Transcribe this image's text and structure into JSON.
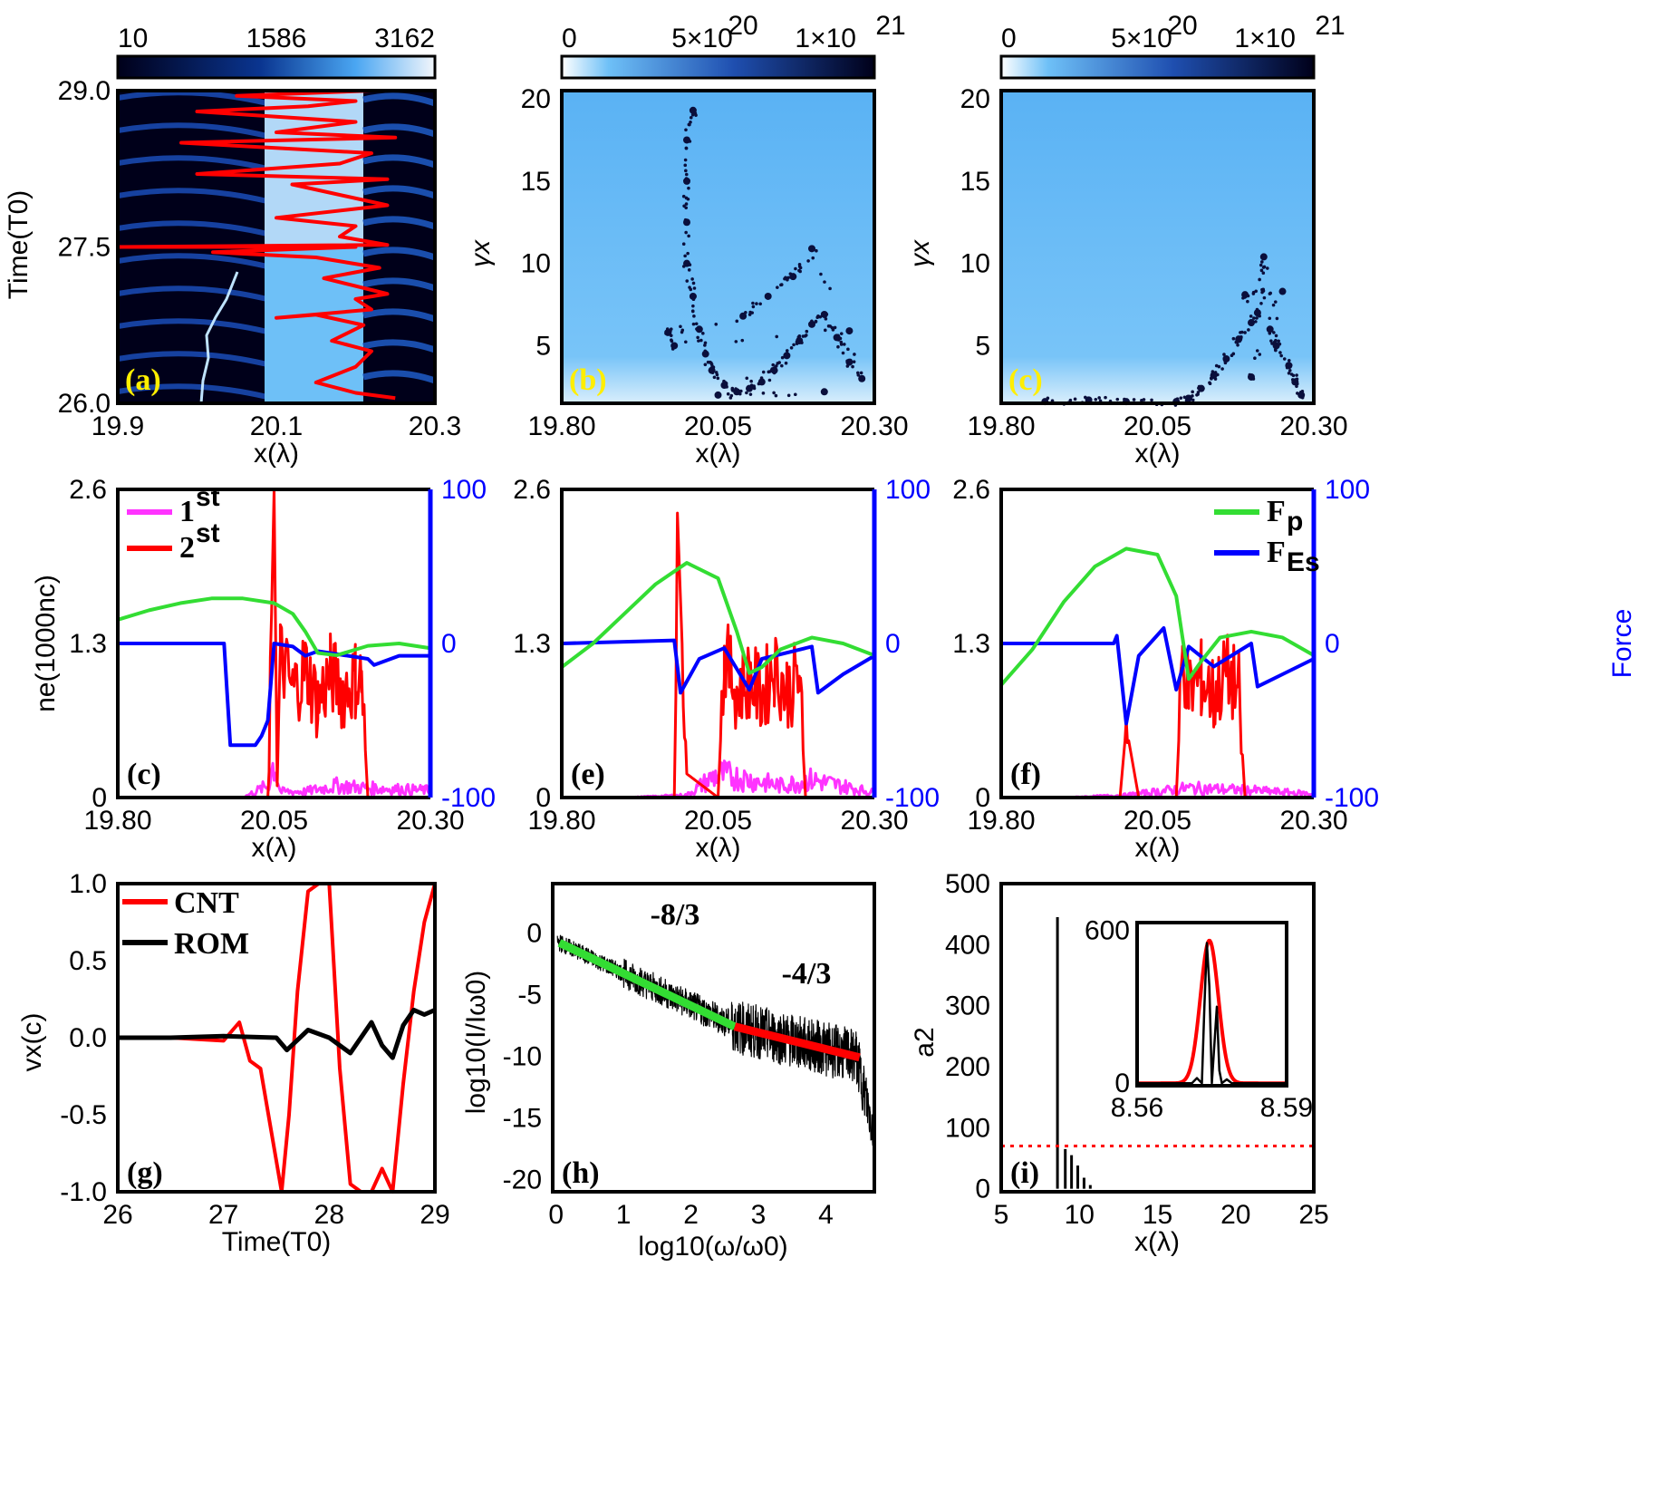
{
  "colors": {
    "red": "#ff0000",
    "green": "#33dd33",
    "blue": "#0000ff",
    "magenta": "#ff33ff",
    "black": "#000000",
    "yellow_label": "#ffee00",
    "map_dark": "#00001a",
    "map_mid": "#1f68c8",
    "map_light": "#6ec0f7",
    "map_white": "#f2f6fb"
  },
  "chart_data": [
    {
      "id": "a",
      "type": "heatmap",
      "panel_label": "(a)",
      "colorbar_ticks": [
        "10",
        "1586",
        "3162"
      ],
      "xlabel": "x(λ)",
      "ylabel": "Time(T0)",
      "xticks": [
        "19.9",
        "20.1",
        "20.3"
      ],
      "yticks": [
        "26.0",
        "27.5",
        "29.0"
      ],
      "xlim": [
        19.9,
        20.3
      ],
      "ylim": [
        26.0,
        29.0
      ],
      "overlay": {
        "name": "red trajectory",
        "color": "#ff0000"
      }
    },
    {
      "id": "b",
      "type": "scatter",
      "panel_label": "(b)",
      "colorbar_ticks": [
        "0",
        "5×10",
        "20",
        "1×10",
        "21"
      ],
      "xlabel": "x(λ)",
      "ylabel": "γx",
      "xticks": [
        "19.80",
        "20.05",
        "20.30"
      ],
      "yticks": [
        "5",
        "10",
        "15",
        "20"
      ],
      "xlim": [
        19.8,
        20.3
      ],
      "ylim": [
        1.5,
        20.5
      ],
      "points": [
        [
          20.01,
          19.3
        ],
        [
          20.0,
          17.5
        ],
        [
          20.0,
          15.0
        ],
        [
          20.0,
          12.5
        ],
        [
          20.0,
          10.0
        ],
        [
          20.01,
          8.0
        ],
        [
          20.02,
          6.0
        ],
        [
          20.03,
          4.5
        ],
        [
          20.04,
          3.5
        ],
        [
          20.06,
          2.6
        ],
        [
          20.08,
          2.2
        ],
        [
          20.1,
          2.4
        ],
        [
          20.12,
          2.8
        ],
        [
          20.14,
          3.5
        ],
        [
          20.16,
          4.4
        ],
        [
          20.18,
          5.3
        ],
        [
          20.2,
          6.3
        ],
        [
          20.22,
          6.9
        ],
        [
          20.24,
          5.5
        ],
        [
          20.26,
          4.0
        ],
        [
          20.28,
          3.0
        ],
        [
          20.2,
          10.9
        ],
        [
          20.17,
          9.2
        ],
        [
          20.13,
          8.0
        ],
        [
          20.09,
          6.8
        ],
        [
          19.97,
          5.8
        ],
        [
          19.98,
          5.0
        ],
        [
          20.26,
          5.9
        ],
        [
          20.05,
          2.0
        ],
        [
          20.22,
          2.2
        ]
      ]
    },
    {
      "id": "c_top",
      "type": "scatter",
      "panel_label": "(c)",
      "colorbar_ticks": [
        "0",
        "5×10",
        "20",
        "1×10",
        "21"
      ],
      "xlabel": "x(λ)",
      "ylabel": "γx",
      "xticks": [
        "19.80",
        "20.05",
        "20.30"
      ],
      "yticks": [
        "5",
        "10",
        "15",
        "20"
      ],
      "xlim": [
        19.8,
        20.3
      ],
      "ylim": [
        1.5,
        20.5
      ],
      "points": [
        [
          19.87,
          1.6
        ],
        [
          19.94,
          1.7
        ],
        [
          20.0,
          1.6
        ],
        [
          20.08,
          1.6
        ],
        [
          20.1,
          1.8
        ],
        [
          20.12,
          2.4
        ],
        [
          20.14,
          3.2
        ],
        [
          20.16,
          4.2
        ],
        [
          20.18,
          5.4
        ],
        [
          20.2,
          6.4
        ],
        [
          20.21,
          7.0
        ],
        [
          20.22,
          10.4
        ],
        [
          20.23,
          6.0
        ],
        [
          20.24,
          5.0
        ],
        [
          20.26,
          3.8
        ],
        [
          20.27,
          2.8
        ],
        [
          20.28,
          2.0
        ],
        [
          20.19,
          8.1
        ],
        [
          20.25,
          8.3
        ],
        [
          20.2,
          3.1
        ]
      ]
    },
    {
      "id": "d",
      "type": "line",
      "panel_label": "(c)",
      "xlabel": "x(λ)",
      "ylabel": "ne(1000nc)",
      "ylabel_right": "Force",
      "xticks": [
        "19.80",
        "20.05",
        "20.30"
      ],
      "yticks": [
        "0",
        "1.3",
        "2.6"
      ],
      "yticks_right": [
        "-100",
        "0",
        "100"
      ],
      "xlim": [
        19.8,
        20.3
      ],
      "ylim": [
        0,
        2.6
      ],
      "ylim_right": [
        -100,
        100
      ],
      "legend": [
        {
          "text": "1",
          "sup": "st",
          "color": "#ff33ff"
        },
        {
          "text": "2",
          "sup": "st",
          "color": "#ff0000"
        }
      ],
      "series": [
        {
          "color": "#33dd33",
          "x": [
            19.8,
            19.85,
            19.9,
            19.95,
            20.0,
            20.05,
            20.08,
            20.1,
            20.12,
            20.15,
            20.2,
            20.25,
            20.3
          ],
          "y": [
            1.5,
            1.58,
            1.64,
            1.68,
            1.68,
            1.64,
            1.55,
            1.4,
            1.22,
            1.2,
            1.28,
            1.3,
            1.26
          ]
        },
        {
          "color": "#0000ff",
          "axis": "right",
          "x": [
            19.8,
            19.97,
            19.98,
            20.02,
            20.03,
            20.04,
            20.05,
            20.08,
            20.1,
            20.12,
            20.2,
            20.21,
            20.25,
            20.3
          ],
          "y": [
            0,
            0,
            -66,
            -66,
            -60,
            -50,
            0,
            -2,
            -8,
            -5,
            -10,
            -14,
            -8,
            -8
          ]
        },
        {
          "color": "#ff0000",
          "x": [
            19.8,
            20.04,
            20.05,
            20.055,
            20.06,
            20.08,
            20.1,
            20.12,
            20.14,
            20.16,
            20.18,
            20.19,
            20.2,
            20.3
          ],
          "y": [
            0,
            0,
            2.6,
            0.1,
            1.2,
            0.9,
            1.1,
            0.8,
            1.05,
            0.9,
            1.0,
            1.0,
            0,
            0
          ]
        },
        {
          "color": "#ff33ff",
          "x": [
            19.8,
            20.0,
            20.04,
            20.05,
            20.06,
            20.1,
            20.15,
            20.2,
            20.3
          ],
          "y": [
            0,
            0,
            0.1,
            0.3,
            0.05,
            0.05,
            0.1,
            0.08,
            0.06
          ]
        }
      ]
    },
    {
      "id": "e",
      "type": "line",
      "panel_label": "(e)",
      "xlabel": "x(λ)",
      "xticks": [
        "19.80",
        "20.05",
        "20.30"
      ],
      "yticks": [
        "0",
        "1.3",
        "2.6"
      ],
      "yticks_right": [
        "-100",
        "0",
        "100"
      ],
      "xlim": [
        19.8,
        20.3
      ],
      "ylim": [
        0,
        2.6
      ],
      "ylim_right": [
        -100,
        100
      ],
      "series": [
        {
          "color": "#33dd33",
          "x": [
            19.8,
            19.85,
            19.9,
            19.95,
            20.0,
            20.05,
            20.08,
            20.1,
            20.12,
            20.15,
            20.2,
            20.25,
            20.3
          ],
          "y": [
            1.1,
            1.3,
            1.55,
            1.8,
            1.98,
            1.85,
            1.4,
            1.05,
            1.1,
            1.25,
            1.35,
            1.3,
            1.2
          ]
        },
        {
          "color": "#0000ff",
          "axis": "right",
          "x": [
            19.8,
            19.98,
            19.99,
            20.02,
            20.06,
            20.1,
            20.12,
            20.2,
            20.21,
            20.25,
            20.3
          ],
          "y": [
            0,
            2,
            -32,
            -10,
            -3,
            -30,
            -10,
            -2,
            -32,
            -20,
            -8
          ]
        },
        {
          "color": "#ff0000",
          "x": [
            19.8,
            19.98,
            19.985,
            20.0,
            20.05,
            20.06,
            20.08,
            20.1,
            20.12,
            20.14,
            20.16,
            20.18,
            20.19,
            20.3
          ],
          "y": [
            0,
            0,
            2.4,
            0.2,
            0,
            1.2,
            0.9,
            1.0,
            0.85,
            1.1,
            0.9,
            1.0,
            0,
            0
          ]
        },
        {
          "color": "#ff33ff",
          "x": [
            19.8,
            19.9,
            20.0,
            20.05,
            20.1,
            20.15,
            20.2,
            20.3
          ],
          "y": [
            0,
            0,
            0.02,
            0.2,
            0.15,
            0.1,
            0.15,
            0.04
          ]
        }
      ]
    },
    {
      "id": "f",
      "type": "line",
      "panel_label": "(f)",
      "xlabel": "x(λ)",
      "ylabel_right": "Force",
      "xticks": [
        "19.80",
        "20.05",
        "20.30"
      ],
      "yticks": [
        "0",
        "1.3",
        "2.6"
      ],
      "yticks_right": [
        "-100",
        "0",
        "100"
      ],
      "xlim": [
        19.8,
        20.3
      ],
      "ylim": [
        0,
        2.6
      ],
      "ylim_right": [
        -100,
        100
      ],
      "legend": [
        {
          "text": "F",
          "sub": "p",
          "color": "#33dd33"
        },
        {
          "text": "F",
          "sub": "Es",
          "color": "#0000ff"
        }
      ],
      "series": [
        {
          "color": "#33dd33",
          "x": [
            19.8,
            19.85,
            19.9,
            19.95,
            20.0,
            20.05,
            20.08,
            20.1,
            20.12,
            20.15,
            20.2,
            20.25,
            20.3
          ],
          "y": [
            0.95,
            1.25,
            1.65,
            1.95,
            2.1,
            2.05,
            1.7,
            1.0,
            1.15,
            1.35,
            1.4,
            1.35,
            1.2
          ]
        },
        {
          "color": "#0000ff",
          "axis": "right",
          "x": [
            19.8,
            19.98,
            19.985,
            20.0,
            20.02,
            20.06,
            20.08,
            20.1,
            20.14,
            20.2,
            20.21,
            20.25,
            20.3
          ],
          "y": [
            0,
            0,
            5,
            -52,
            -8,
            10,
            -30,
            -2,
            -15,
            0,
            -28,
            -20,
            -10
          ]
        },
        {
          "color": "#ff0000",
          "x": [
            19.8,
            19.99,
            20.0,
            20.02,
            20.08,
            20.09,
            20.1,
            20.12,
            20.14,
            20.16,
            20.18,
            20.19,
            20.3
          ],
          "y": [
            0,
            0,
            0.6,
            0,
            0,
            1.2,
            0.9,
            1.0,
            0.85,
            1.05,
            0.9,
            0,
            0
          ]
        },
        {
          "color": "#ff33ff",
          "x": [
            19.8,
            19.9,
            20.0,
            20.1,
            20.2,
            20.3
          ],
          "y": [
            0,
            0,
            0.02,
            0.08,
            0.06,
            0.03
          ]
        }
      ]
    },
    {
      "id": "g",
      "type": "line",
      "panel_label": "(g)",
      "xlabel": "Time(T0)",
      "ylabel": "vx(c)",
      "xticks": [
        "26",
        "27",
        "28",
        "29"
      ],
      "yticks": [
        "-1.0",
        "-0.5",
        "0.0",
        "0.5",
        "1.0"
      ],
      "xlim": [
        26,
        29
      ],
      "ylim": [
        -1.0,
        1.0
      ],
      "legend": [
        {
          "text": "CNT",
          "color": "#ff0000"
        },
        {
          "text": "ROM",
          "color": "#000000"
        }
      ],
      "series": [
        {
          "name": "CNT",
          "color": "#ff0000",
          "x": [
            26,
            26.5,
            27,
            27.15,
            27.25,
            27.35,
            27.45,
            27.55,
            27.62,
            27.7,
            27.8,
            27.9,
            28.0,
            28.1,
            28.2,
            28.3,
            28.4,
            28.5,
            28.6,
            28.7,
            28.8,
            28.9,
            29
          ],
          "y": [
            0,
            0,
            -0.02,
            0.1,
            -0.15,
            -0.2,
            -0.6,
            -1.0,
            -0.5,
            0.3,
            0.95,
            1.0,
            1.0,
            -0.2,
            -0.95,
            -1.0,
            -1.0,
            -0.85,
            -1.0,
            -0.3,
            0.3,
            0.75,
            1.0
          ]
        },
        {
          "name": "ROM",
          "color": "#000000",
          "x": [
            26,
            26.5,
            27,
            27.5,
            27.6,
            27.8,
            28.0,
            28.2,
            28.4,
            28.5,
            28.6,
            28.7,
            28.8,
            28.9,
            29
          ],
          "y": [
            0,
            0,
            0.01,
            0.0,
            -0.08,
            0.05,
            0.0,
            -0.1,
            0.1,
            -0.05,
            -0.13,
            0.08,
            0.18,
            0.15,
            0.18
          ]
        }
      ]
    },
    {
      "id": "h",
      "type": "line",
      "panel_label": "(h)",
      "xlabel": "log10(ω/ω0)",
      "ylabel": "log10(I/Iω0)",
      "xticks": [
        "0",
        "1",
        "2",
        "3",
        "4"
      ],
      "yticks": [
        "-20",
        "-15",
        "-10",
        "-5",
        "0"
      ],
      "xlim": [
        -0.05,
        4.72
      ],
      "ylim": [
        -21,
        4
      ],
      "annotations": [
        "-8/3",
        "-4/3"
      ],
      "fits": [
        {
          "label": "-8/3",
          "color": "#33dd33",
          "x": [
            0.05,
            2.65
          ],
          "y": [
            -0.8,
            -7.6
          ]
        },
        {
          "label": "-4/3",
          "color": "#ff0000",
          "x": [
            2.65,
            4.5
          ],
          "y": [
            -7.6,
            -10.1
          ]
        }
      ]
    },
    {
      "id": "i",
      "type": "bar",
      "panel_label": "(i)",
      "xlabel": "x(λ)",
      "ylabel": "a2",
      "xticks": [
        "5",
        "10",
        "15",
        "20",
        "25"
      ],
      "yticks": [
        "0",
        "100",
        "200",
        "300",
        "400",
        "500"
      ],
      "xlim": [
        5,
        25
      ],
      "ylim": [
        -5,
        500
      ],
      "threshold": 70,
      "bars": [
        [
          8.6,
          445
        ],
        [
          9.1,
          65
        ],
        [
          9.5,
          55
        ],
        [
          9.9,
          38
        ],
        [
          10.3,
          18
        ],
        [
          10.7,
          6
        ]
      ],
      "inset": {
        "xticks": [
          "8.56",
          "8.59"
        ],
        "yticks": [
          "0",
          "600"
        ],
        "xlim": [
          8.56,
          8.59
        ],
        "ylim": [
          -10,
          630
        ],
        "gaussian": {
          "center": 8.5745,
          "amp": 560,
          "width": 0.0018
        },
        "black": [
          [
            8.56,
            0
          ],
          [
            8.571,
            0
          ],
          [
            8.572,
            20
          ],
          [
            8.573,
            0
          ],
          [
            8.5735,
            300
          ],
          [
            8.574,
            550
          ],
          [
            8.5745,
            380
          ],
          [
            8.575,
            0
          ],
          [
            8.576,
            300
          ],
          [
            8.5765,
            50
          ],
          [
            8.577,
            0
          ],
          [
            8.578,
            15
          ],
          [
            8.579,
            0
          ],
          [
            8.59,
            0
          ]
        ]
      }
    }
  ]
}
